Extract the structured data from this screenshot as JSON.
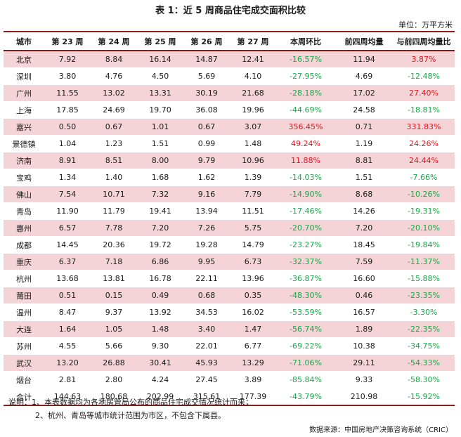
{
  "title": "表 1：近 5 周商品住宅成交面积比较",
  "unit": "单位：万平方米",
  "table": {
    "headers": [
      "城市",
      "第 23 周",
      "第 24 周",
      "第 25 周",
      "第 26 周",
      "第 27 周",
      "本周环比",
      "前四周均量",
      "与前四周均量比"
    ],
    "rows": [
      {
        "city": "北京",
        "w23": "7.92",
        "w24": "8.84",
        "w25": "16.14",
        "w26": "14.87",
        "w27": "12.41",
        "wow": "-16.57%",
        "wow_sign": "neg",
        "avg4": "11.94",
        "vs4": "3.87%",
        "vs4_sign": "pos"
      },
      {
        "city": "深圳",
        "w23": "3.80",
        "w24": "4.76",
        "w25": "4.50",
        "w26": "5.69",
        "w27": "4.10",
        "wow": "-27.95%",
        "wow_sign": "neg",
        "avg4": "4.69",
        "vs4": "-12.48%",
        "vs4_sign": "neg"
      },
      {
        "city": "广州",
        "w23": "11.55",
        "w24": "13.02",
        "w25": "13.31",
        "w26": "30.19",
        "w27": "21.68",
        "wow": "-28.18%",
        "wow_sign": "neg",
        "avg4": "17.02",
        "vs4": "27.40%",
        "vs4_sign": "pos"
      },
      {
        "city": "上海",
        "w23": "17.85",
        "w24": "24.69",
        "w25": "19.70",
        "w26": "36.08",
        "w27": "19.96",
        "wow": "-44.69%",
        "wow_sign": "neg",
        "avg4": "24.58",
        "vs4": "-18.81%",
        "vs4_sign": "neg"
      },
      {
        "city": "嘉兴",
        "w23": "0.50",
        "w24": "0.67",
        "w25": "1.01",
        "w26": "0.67",
        "w27": "3.07",
        "wow": "356.45%",
        "wow_sign": "pos",
        "avg4": "0.71",
        "vs4": "331.83%",
        "vs4_sign": "pos"
      },
      {
        "city": "景德镇",
        "w23": "1.04",
        "w24": "1.23",
        "w25": "1.51",
        "w26": "0.99",
        "w27": "1.48",
        "wow": "49.24%",
        "wow_sign": "pos",
        "avg4": "1.19",
        "vs4": "24.26%",
        "vs4_sign": "pos"
      },
      {
        "city": "济南",
        "w23": "8.91",
        "w24": "8.51",
        "w25": "8.00",
        "w26": "9.79",
        "w27": "10.96",
        "wow": "11.88%",
        "wow_sign": "pos",
        "avg4": "8.81",
        "vs4": "24.44%",
        "vs4_sign": "pos"
      },
      {
        "city": "宝鸡",
        "w23": "1.34",
        "w24": "1.40",
        "w25": "1.68",
        "w26": "1.62",
        "w27": "1.39",
        "wow": "-14.03%",
        "wow_sign": "neg",
        "avg4": "1.51",
        "vs4": "-7.66%",
        "vs4_sign": "neg"
      },
      {
        "city": "佛山",
        "w23": "7.54",
        "w24": "10.71",
        "w25": "7.32",
        "w26": "9.16",
        "w27": "7.79",
        "wow": "-14.90%",
        "wow_sign": "neg",
        "avg4": "8.68",
        "vs4": "-10.26%",
        "vs4_sign": "neg"
      },
      {
        "city": "青岛",
        "w23": "11.90",
        "w24": "11.79",
        "w25": "19.41",
        "w26": "13.94",
        "w27": "11.51",
        "wow": "-17.46%",
        "wow_sign": "neg",
        "avg4": "14.26",
        "vs4": "-19.31%",
        "vs4_sign": "neg"
      },
      {
        "city": "惠州",
        "w23": "6.57",
        "w24": "7.78",
        "w25": "7.20",
        "w26": "7.26",
        "w27": "5.75",
        "wow": "-20.70%",
        "wow_sign": "neg",
        "avg4": "7.20",
        "vs4": "-20.10%",
        "vs4_sign": "neg"
      },
      {
        "city": "成都",
        "w23": "14.45",
        "w24": "20.36",
        "w25": "19.72",
        "w26": "19.28",
        "w27": "14.79",
        "wow": "-23.27%",
        "wow_sign": "neg",
        "avg4": "18.45",
        "vs4": "-19.84%",
        "vs4_sign": "neg"
      },
      {
        "city": "重庆",
        "w23": "6.37",
        "w24": "7.18",
        "w25": "6.86",
        "w26": "9.95",
        "w27": "6.73",
        "wow": "-32.37%",
        "wow_sign": "neg",
        "avg4": "7.59",
        "vs4": "-11.37%",
        "vs4_sign": "neg"
      },
      {
        "city": "杭州",
        "w23": "13.68",
        "w24": "13.81",
        "w25": "16.78",
        "w26": "22.11",
        "w27": "13.96",
        "wow": "-36.87%",
        "wow_sign": "neg",
        "avg4": "16.60",
        "vs4": "-15.88%",
        "vs4_sign": "neg"
      },
      {
        "city": "莆田",
        "w23": "0.51",
        "w24": "0.15",
        "w25": "0.49",
        "w26": "0.68",
        "w27": "0.35",
        "wow": "-48.30%",
        "wow_sign": "neg",
        "avg4": "0.46",
        "vs4": "-23.35%",
        "vs4_sign": "neg"
      },
      {
        "city": "温州",
        "w23": "8.47",
        "w24": "9.37",
        "w25": "13.92",
        "w26": "34.53",
        "w27": "16.02",
        "wow": "-53.59%",
        "wow_sign": "neg",
        "avg4": "16.57",
        "vs4": "-3.30%",
        "vs4_sign": "neg"
      },
      {
        "city": "大连",
        "w23": "1.64",
        "w24": "1.05",
        "w25": "1.48",
        "w26": "3.40",
        "w27": "1.47",
        "wow": "-56.74%",
        "wow_sign": "neg",
        "avg4": "1.89",
        "vs4": "-22.35%",
        "vs4_sign": "neg"
      },
      {
        "city": "苏州",
        "w23": "4.55",
        "w24": "5.66",
        "w25": "9.30",
        "w26": "22.01",
        "w27": "6.77",
        "wow": "-69.22%",
        "wow_sign": "neg",
        "avg4": "10.38",
        "vs4": "-34.75%",
        "vs4_sign": "neg"
      },
      {
        "city": "武汉",
        "w23": "13.20",
        "w24": "26.88",
        "w25": "30.41",
        "w26": "45.93",
        "w27": "13.29",
        "wow": "-71.06%",
        "wow_sign": "neg",
        "avg4": "29.11",
        "vs4": "-54.33%",
        "vs4_sign": "neg"
      },
      {
        "city": "烟台",
        "w23": "2.81",
        "w24": "2.80",
        "w25": "4.24",
        "w26": "27.45",
        "w27": "3.89",
        "wow": "-85.84%",
        "wow_sign": "neg",
        "avg4": "9.33",
        "vs4": "-58.30%",
        "vs4_sign": "neg"
      }
    ],
    "total": {
      "city": "合计",
      "w23": "144.63",
      "w24": "180.68",
      "w25": "202.99",
      "w26": "315.61",
      "w27": "177.39",
      "wow": "-43.79%",
      "wow_sign": "neg",
      "avg4": "210.98",
      "vs4": "-15.92%",
      "vs4_sign": "neg"
    }
  },
  "notes": {
    "line1": "说明：1、本表数据均为各地房管局公布的商品住宅成交情况统计而来；",
    "line2": "2、杭州、青岛等城市统计范围为市区，不包含下属县。"
  },
  "source": "数据来源：中国房地产决策咨询系统（CRIC）",
  "colors": {
    "positive": "#e0141e",
    "negative": "#1aa84a",
    "band": "#f4d4d6",
    "rule": "#8b1a1a"
  }
}
